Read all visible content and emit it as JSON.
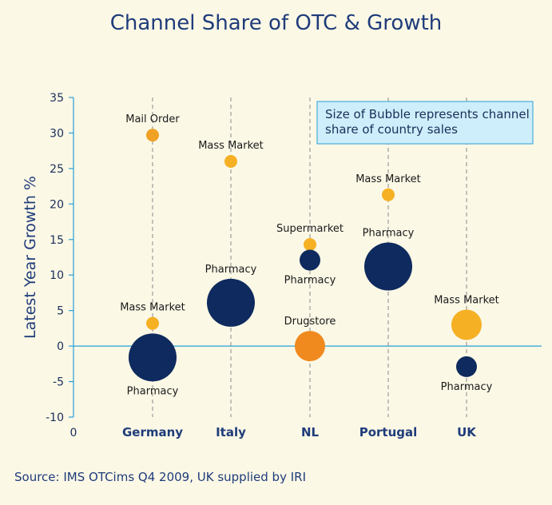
{
  "chart_data": {
    "type": "scatter",
    "title": "Channel Share of OTC & Growth",
    "ylabel": "Latest Year Growth %",
    "xlabel": "",
    "categories": [
      "Germany",
      "Italy",
      "NL",
      "Portugal",
      "UK"
    ],
    "x_origin_label": "0",
    "ylim": [
      -10,
      35
    ],
    "yticks": [
      35,
      30,
      25,
      20,
      15,
      10,
      5,
      0,
      -5,
      -10
    ],
    "points": [
      {
        "country": "Germany",
        "label": "Mail Order",
        "y": 29.7,
        "size": "small",
        "color": "#f0a123",
        "label_pos": "above"
      },
      {
        "country": "Germany",
        "label": "Mass Market",
        "y": 3.2,
        "size": "small",
        "color": "#f5b024",
        "label_pos": "above"
      },
      {
        "country": "Germany",
        "label": "Pharmacy",
        "y": -1.6,
        "size": "largest",
        "color": "#0e2a5e",
        "label_pos": "below"
      },
      {
        "country": "Italy",
        "label": "Mass Market",
        "y": 26.0,
        "size": "small",
        "color": "#f5b024",
        "label_pos": "above"
      },
      {
        "country": "Italy",
        "label": "Pharmacy",
        "y": 6.1,
        "size": "large",
        "color": "#0e2a5e",
        "label_pos": "above"
      },
      {
        "country": "NL",
        "label": "Supermarket",
        "y": 14.3,
        "size": "small",
        "color": "#f5b024",
        "label_pos": "above"
      },
      {
        "country": "NL",
        "label": "Pharmacy",
        "y": 12.1,
        "size": "medium-small",
        "color": "#0e2a5e",
        "label_pos": "below"
      },
      {
        "country": "NL",
        "label": "Drugstore",
        "y": 0.0,
        "size": "medium",
        "color": "#f08a1e",
        "label_pos": "above"
      },
      {
        "country": "Portugal",
        "label": "Mass Market",
        "y": 21.3,
        "size": "small",
        "color": "#f5b024",
        "label_pos": "above"
      },
      {
        "country": "Portugal",
        "label": "Pharmacy",
        "y": 11.2,
        "size": "large",
        "color": "#0e2a5e",
        "label_pos": "above"
      },
      {
        "country": "UK",
        "label": "Mass Market",
        "y": 3.0,
        "size": "medium",
        "color": "#f5b024",
        "label_pos": "above"
      },
      {
        "country": "UK",
        "label": "Pharmacy",
        "y": -2.9,
        "size": "medium-small",
        "color": "#0e2a5e",
        "label_pos": "below"
      }
    ],
    "annotation": [
      "Size of Bubble represents channel",
      "share of country sales"
    ],
    "colors": {
      "axis": "#2a9fd6",
      "text": "#1f3c7a",
      "annotation_bg": "#cdeefa",
      "annotation_border": "#2a9fd6"
    }
  },
  "source": "Source: IMS OTCims Q4 2009, UK supplied by IRI"
}
